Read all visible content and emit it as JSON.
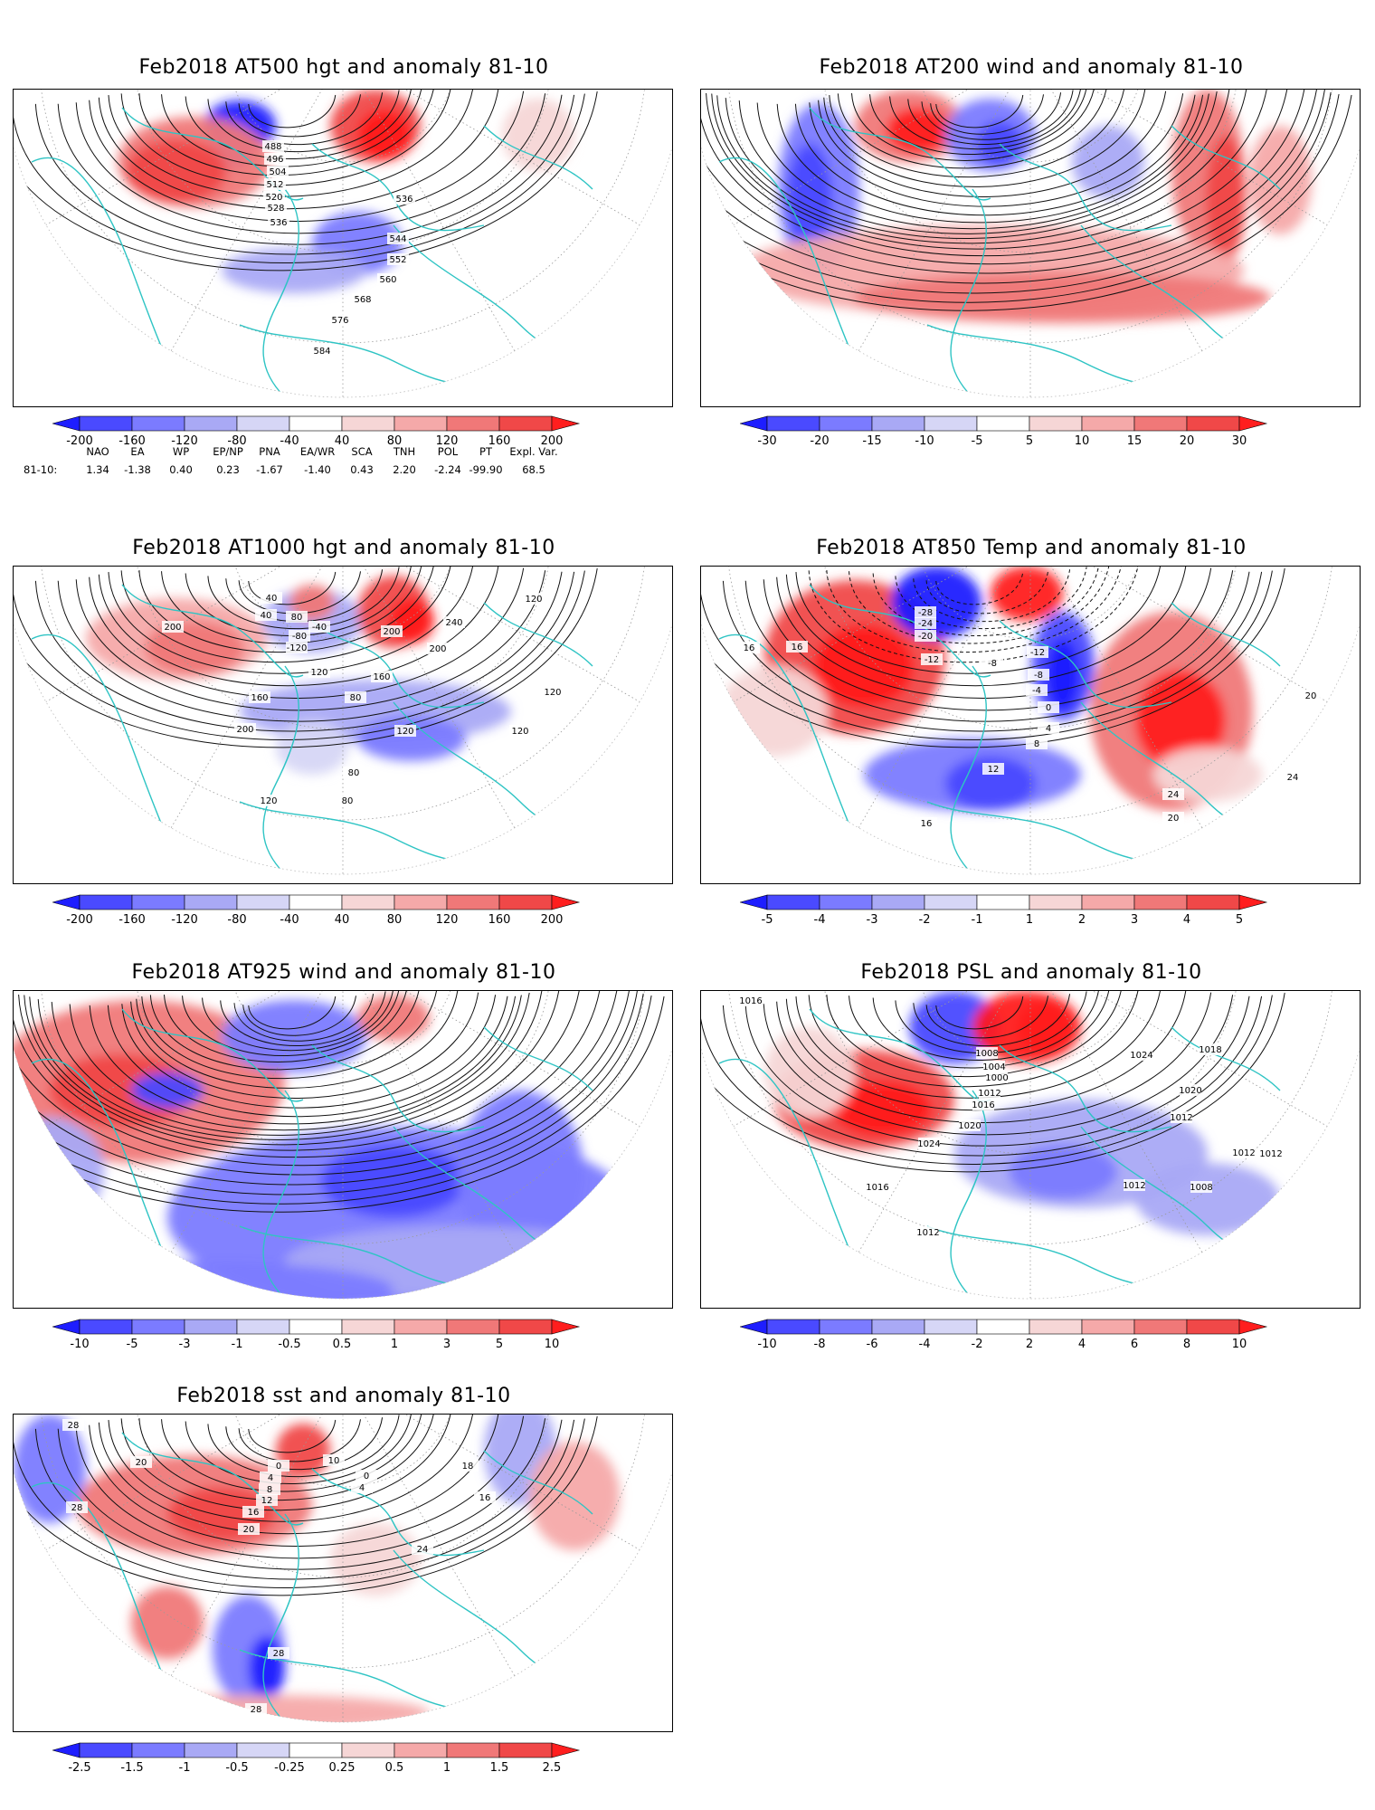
{
  "colors": {
    "contour": "#111111",
    "coast": "#2ec4c4",
    "neg": [
      "#1e1eff",
      "#4a4aff",
      "#7b7bff",
      "#a9a9f5",
      "#d6d6f6"
    ],
    "pos": [
      "#f6d6d6",
      "#f5a9a9",
      "#f07878",
      "#f04848",
      "#ff1e1e"
    ]
  },
  "panels": [
    {
      "id": "at500",
      "title": "Feb2018 AT500 hgt and anomaly 81-10",
      "colorbar_ticks": [
        "-200",
        "-160",
        "-120",
        "-80",
        "-40",
        "40",
        "80",
        "120",
        "160",
        "200"
      ],
      "contour_labels": [
        "488",
        "496",
        "504",
        "512",
        "520",
        "528",
        "536",
        "536",
        "544",
        "552",
        "560",
        "568",
        "576",
        "584"
      ]
    },
    {
      "id": "at200",
      "title": "Feb2018 AT200 wind and anomaly 81-10",
      "colorbar_ticks": [
        "-30",
        "-20",
        "-15",
        "-10",
        "-5",
        "5",
        "10",
        "15",
        "20",
        "30"
      ],
      "contour_labels": []
    },
    {
      "id": "at1000",
      "title": "Feb2018 AT1000 hgt and anomaly 81-10",
      "colorbar_ticks": [
        "-200",
        "-160",
        "-120",
        "-80",
        "-40",
        "40",
        "80",
        "120",
        "160",
        "200"
      ],
      "contour_labels": [
        "40",
        "40",
        "80",
        "-40",
        "-80",
        "-120",
        "120",
        "200",
        "240",
        "200",
        "120",
        "160",
        "160",
        "200",
        "120",
        "80",
        "120",
        "120",
        "80",
        "120",
        "80",
        "200"
      ]
    },
    {
      "id": "at850",
      "title": "Feb2018 AT850 Temp and anomaly 81-10",
      "colorbar_ticks": [
        "-5",
        "-4",
        "-3",
        "-2",
        "-1",
        "1",
        "2",
        "3",
        "4",
        "5"
      ],
      "contour_labels": [
        "16",
        "16",
        "-28",
        "-24",
        "-20",
        "-12",
        "-8",
        "-12",
        "-8",
        "-4",
        "0",
        "4",
        "8",
        "12",
        "20",
        "24",
        "24",
        "20",
        "16"
      ]
    },
    {
      "id": "at925",
      "title": "Feb2018 AT925 wind and anomaly 81-10",
      "colorbar_ticks": [
        "-10",
        "-5",
        "-3",
        "-1",
        "-0.5",
        "0.5",
        "1",
        "3",
        "5",
        "10"
      ],
      "contour_labels": []
    },
    {
      "id": "psl",
      "title": "Feb2018 PSL and anomaly 81-10",
      "colorbar_ticks": [
        "-10",
        "-8",
        "-6",
        "-4",
        "-2",
        "2",
        "4",
        "6",
        "8",
        "10"
      ],
      "contour_labels": [
        "1016",
        "1008",
        "1004",
        "1000",
        "1012",
        "1016",
        "1020",
        "1024",
        "1024",
        "1018",
        "1020",
        "1012",
        "1012",
        "1012",
        "1012",
        "1008",
        "1016",
        "1012"
      ]
    },
    {
      "id": "sst",
      "title": "Feb2018 sst and anomaly 81-10",
      "colorbar_ticks": [
        "-2.5",
        "-1.5",
        "-1",
        "-0.5",
        "-0.25",
        "0.25",
        "0.5",
        "1",
        "1.5",
        "2.5"
      ],
      "contour_labels": [
        "28",
        "28",
        "20",
        "0",
        "4",
        "8",
        "12",
        "16",
        "20",
        "0",
        "4",
        "10",
        "16",
        "18",
        "24",
        "28",
        "28"
      ]
    }
  ],
  "teleconnections": {
    "headers": [
      "NAO",
      "EA",
      "WP",
      "EP/NP",
      "PNA",
      "EA/WR",
      "SCA",
      "TNH",
      "POL",
      "PT",
      "Expl. Var."
    ],
    "row_label": "81-10:",
    "values": [
      "1.34",
      "-1.38",
      "0.40",
      "0.23",
      "-1.67",
      "-1.40",
      "0.43",
      "2.20",
      "-2.24",
      "-99.90",
      "68.5"
    ]
  }
}
